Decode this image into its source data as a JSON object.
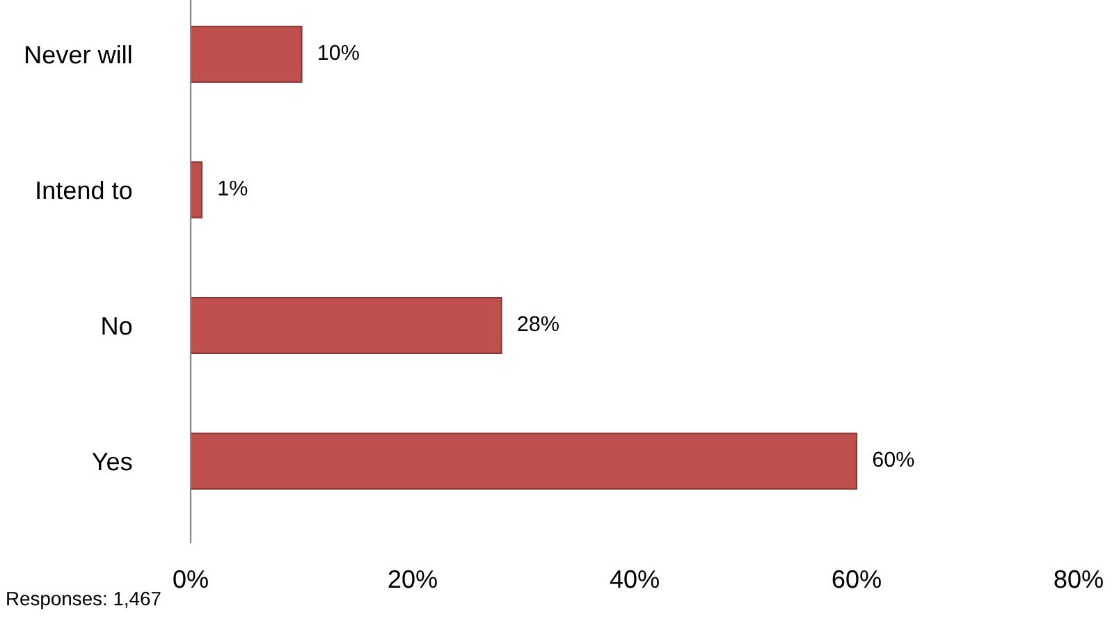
{
  "chart_data": {
    "type": "bar",
    "orientation": "horizontal",
    "categories": [
      "Never will",
      "Intend to",
      "No",
      "Yes"
    ],
    "values": [
      10,
      1,
      28,
      60
    ],
    "value_labels": [
      "10%",
      "1%",
      "28%",
      "60%"
    ],
    "color": "#c0504d",
    "xlim": [
      0,
      80
    ],
    "xticks": [
      {
        "value": 0,
        "label": "0%"
      },
      {
        "value": 20,
        "label": "20%"
      },
      {
        "value": 40,
        "label": "40%"
      },
      {
        "value": 60,
        "label": "60%"
      },
      {
        "value": 80,
        "label": "80%"
      }
    ],
    "grid": false,
    "legend": false,
    "annotations": [
      "Responses: 1,467"
    ]
  }
}
